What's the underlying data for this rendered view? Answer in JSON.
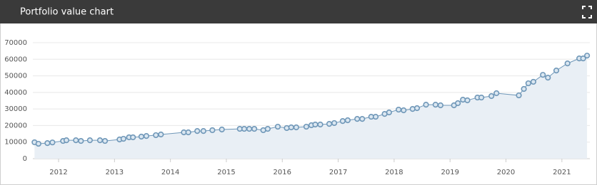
{
  "chart_data": {
    "type": "area",
    "title": "Portfolio value chart",
    "x": [
      2011.57,
      2011.64,
      2011.8,
      2011.89,
      2012.08,
      2012.14,
      2012.31,
      2012.4,
      2012.56,
      2012.74,
      2012.83,
      2013.09,
      2013.16,
      2013.26,
      2013.33,
      2013.48,
      2013.57,
      2013.74,
      2013.83,
      2014.24,
      2014.32,
      2014.48,
      2014.59,
      2014.75,
      2014.92,
      2015.24,
      2015.32,
      2015.41,
      2015.5,
      2015.66,
      2015.74,
      2015.92,
      2016.08,
      2016.16,
      2016.25,
      2016.43,
      2016.52,
      2016.59,
      2016.68,
      2016.84,
      2016.93,
      2017.08,
      2017.17,
      2017.34,
      2017.43,
      2017.59,
      2017.67,
      2017.83,
      2017.91,
      2018.08,
      2018.17,
      2018.33,
      2018.41,
      2018.57,
      2018.74,
      2018.83,
      2019.07,
      2019.14,
      2019.23,
      2019.31,
      2019.49,
      2019.56,
      2019.74,
      2019.83,
      2020.23,
      2020.32,
      2020.4,
      2020.49,
      2020.66,
      2020.75,
      2020.9,
      2021.1,
      2021.31,
      2021.38,
      2021.45
    ],
    "series": [
      {
        "color": "#6f97b8",
        "values": [
          9900,
          9000,
          9400,
          9800,
          10700,
          11100,
          11100,
          10700,
          11100,
          11100,
          10700,
          11600,
          12000,
          12900,
          12900,
          13300,
          13700,
          14200,
          14600,
          15900,
          15900,
          16700,
          16700,
          17200,
          17600,
          18000,
          18000,
          18000,
          18000,
          17200,
          18000,
          19300,
          18500,
          18900,
          18900,
          19300,
          20200,
          20600,
          20600,
          21000,
          21500,
          22700,
          23200,
          24000,
          24000,
          25300,
          25300,
          27000,
          27900,
          29600,
          29200,
          30000,
          30500,
          32600,
          32600,
          32200,
          32200,
          33500,
          35600,
          35200,
          36900,
          36900,
          37800,
          39500,
          38200,
          42100,
          45500,
          46400,
          50600,
          48900,
          53200,
          57500,
          60500,
          60500,
          62200
        ]
      }
    ],
    "xlim": [
      2011.54,
      2021.5
    ],
    "xticks": [
      2012,
      2013,
      2014,
      2015,
      2016,
      2017,
      2018,
      2019,
      2020,
      2021
    ],
    "ylim": [
      0,
      70000
    ],
    "yticks": [
      0,
      10000,
      20000,
      30000,
      40000,
      50000,
      60000,
      70000
    ],
    "grid": true
  }
}
